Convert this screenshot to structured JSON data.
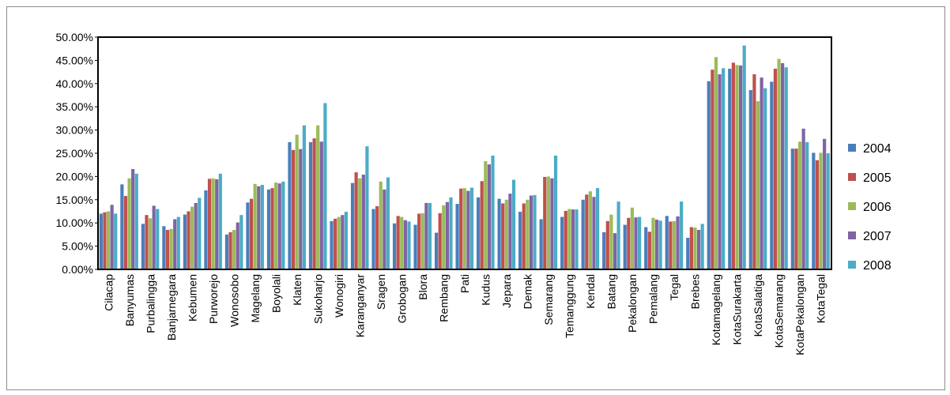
{
  "chart_data": {
    "type": "bar",
    "title": "",
    "xlabel": "",
    "ylabel": "",
    "ylim": [
      0,
      0.5
    ],
    "yticks": [
      "0.00%",
      "5.00%",
      "10.00%",
      "15.00%",
      "20.00%",
      "25.00%",
      "30.00%",
      "35.00%",
      "40.00%",
      "45.00%",
      "50.00%"
    ],
    "grid": false,
    "legend_position": "right",
    "categories": [
      "Cilacap",
      "Banyumas",
      "Purbalingga",
      "Banjarnegara",
      "Kebumen",
      "Purworejo",
      "Wonosobo",
      "Magelang",
      "Boyolali",
      "Klaten",
      "Sukoharjo",
      "Wonogiri",
      "Karanganyar",
      "Sragen",
      "Grobogan",
      "Blora",
      "Rembang",
      "Pati",
      "Kudus",
      "Jepara",
      "Demak",
      "Semarang",
      "Temanggung",
      "Kendal",
      "Batang",
      "Pekalongan",
      "Pemalang",
      "Tegal",
      "Brebes",
      "Kotamagelang",
      "KotaSurakarta",
      "KotaSalatiga",
      "KotaSemarang",
      "KotaPekalongan",
      "KotaTegal"
    ],
    "series": [
      {
        "name": "2004",
        "color": "#4a7ebb",
        "values": [
          12.0,
          18.3,
          9.8,
          9.3,
          11.8,
          17.0,
          7.5,
          14.4,
          17.2,
          27.4,
          27.4,
          10.4,
          18.6,
          13.0,
          9.9,
          9.6,
          7.9,
          14.1,
          15.5,
          15.2,
          12.4,
          10.8,
          11.3,
          15.0,
          8.0,
          9.6,
          9.1,
          11.5,
          6.8,
          40.5,
          43.2,
          38.6,
          40.4,
          26.0,
          25.1
        ]
      },
      {
        "name": "2005",
        "color": "#c0504d",
        "values": [
          12.3,
          15.8,
          11.7,
          8.5,
          12.5,
          19.5,
          8.0,
          15.2,
          17.5,
          25.7,
          28.2,
          10.9,
          20.9,
          13.6,
          11.5,
          12.0,
          12.1,
          17.4,
          19.0,
          14.2,
          14.2,
          19.9,
          12.6,
          16.1,
          10.4,
          11.1,
          8.1,
          10.3,
          9.1,
          43.0,
          44.5,
          42.0,
          43.2,
          26.0,
          23.5
        ]
      },
      {
        "name": "2006",
        "color": "#9bbb59",
        "values": [
          12.5,
          19.6,
          11.0,
          8.7,
          13.5,
          19.6,
          8.5,
          18.4,
          18.7,
          29.0,
          31.0,
          11.3,
          19.6,
          18.9,
          11.3,
          12.1,
          13.8,
          17.5,
          23.3,
          15.0,
          15.0,
          20.0,
          13.0,
          16.8,
          11.8,
          13.3,
          11.1,
          10.4,
          9.0,
          45.7,
          44.0,
          36.2,
          45.3,
          27.5,
          25.1
        ]
      },
      {
        "name": "2007",
        "color": "#8064a2",
        "values": [
          13.9,
          21.6,
          13.7,
          10.8,
          14.3,
          19.4,
          10.1,
          17.9,
          18.5,
          25.9,
          27.5,
          11.7,
          20.4,
          17.2,
          10.6,
          14.3,
          14.5,
          16.9,
          22.6,
          16.3,
          15.9,
          19.6,
          12.9,
          15.6,
          7.8,
          11.2,
          10.7,
          11.4,
          8.5,
          42.0,
          43.9,
          41.3,
          44.4,
          30.3,
          28.1
        ]
      },
      {
        "name": "2008",
        "color": "#4bacc6",
        "values": [
          12.0,
          20.6,
          13.0,
          11.3,
          15.4,
          20.6,
          11.7,
          18.2,
          18.9,
          31.0,
          35.8,
          12.4,
          26.5,
          19.8,
          10.3,
          14.3,
          15.5,
          17.6,
          24.5,
          19.3,
          16.0,
          24.5,
          12.9,
          17.5,
          14.6,
          11.3,
          10.5,
          14.6,
          9.8,
          43.3,
          48.2,
          39.0,
          43.5,
          27.4,
          25.0
        ]
      }
    ]
  }
}
